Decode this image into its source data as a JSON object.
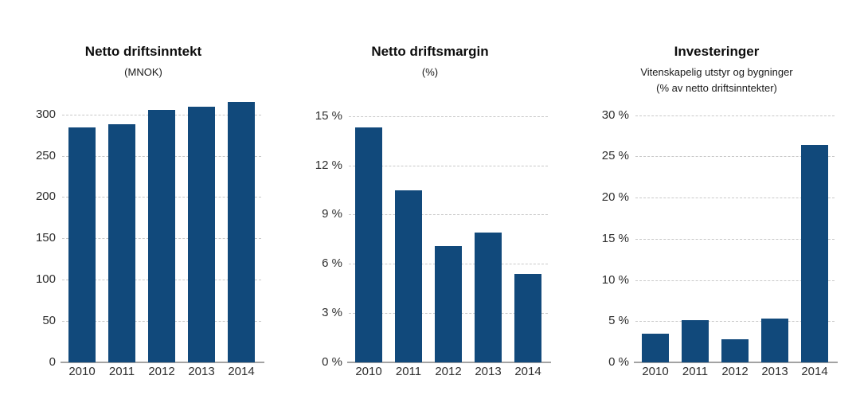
{
  "page": {
    "background": "#ffffff"
  },
  "colors": {
    "bar": "#11497b",
    "gridline": "#c9c9c9",
    "axis_line": "#a3a3a3",
    "tick_label": "#2e2e2e",
    "title": "#0d0d0d"
  },
  "chart_data": [
    {
      "type": "bar",
      "title": "Netto driftsinntekt",
      "subtitle": [
        "(MNOK)"
      ],
      "categories": [
        "2010",
        "2011",
        "2012",
        "2013",
        "2014"
      ],
      "values": [
        284,
        288,
        306,
        309,
        315
      ],
      "xlabel": "",
      "ylabel": "",
      "ylim": [
        0,
        300
      ],
      "yticks": [
        0,
        50,
        100,
        150,
        200,
        250,
        300
      ],
      "ytick_labels": [
        "0",
        "50",
        "100",
        "150",
        "200",
        "250",
        "300"
      ],
      "grid": "horizontal-dashed",
      "legend": "none",
      "plot_max": 319
    },
    {
      "type": "bar",
      "title": "Netto driftsmargin",
      "subtitle": [
        "(%)"
      ],
      "categories": [
        "2010",
        "2011",
        "2012",
        "2013",
        "2014"
      ],
      "values": [
        14.3,
        10.5,
        7.1,
        7.9,
        5.4
      ],
      "xlabel": "",
      "ylabel": "",
      "ylim": [
        0,
        15
      ],
      "yticks": [
        0,
        3,
        6,
        9,
        12,
        15
      ],
      "ytick_labels": [
        "0 %",
        "3 %",
        "6 %",
        "9 %",
        "12 %",
        "15 %"
      ],
      "grid": "horizontal-dashed",
      "legend": "none",
      "plot_max": 16.05
    },
    {
      "type": "bar",
      "title": "Investeringer",
      "subtitle": [
        "Vitenskapelig utstyr og bygninger",
        "(% av netto driftsinntekter)"
      ],
      "categories": [
        "2010",
        "2011",
        "2012",
        "2013",
        "2014"
      ],
      "values": [
        3.5,
        5.1,
        2.8,
        5.3,
        26.4
      ],
      "xlabel": "",
      "ylabel": "",
      "ylim": [
        0,
        30
      ],
      "yticks": [
        0,
        5,
        10,
        15,
        20,
        25,
        30
      ],
      "ytick_labels": [
        "0 %",
        "5 %",
        "10 %",
        "15 %",
        "20 %",
        "25 %",
        "30 %"
      ],
      "grid": "horizontal-dashed",
      "legend": "none",
      "plot_max": 32
    }
  ]
}
